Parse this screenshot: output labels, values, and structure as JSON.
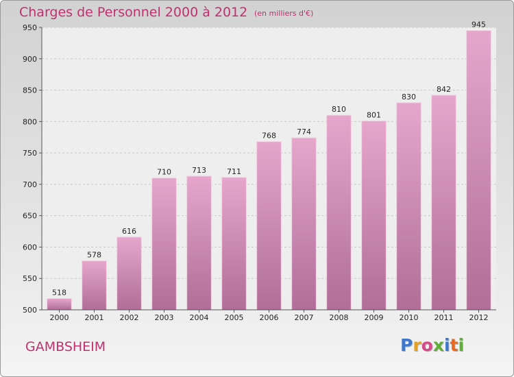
{
  "header": {
    "title": "Charges de Personnel 2000 à 2012",
    "subtitle": "(en milliers d'€)"
  },
  "footer": {
    "city": "GAMBSHEIM",
    "logo_text": "Proxiti"
  },
  "colors": {
    "accent": "#c0306e",
    "bar_top": "#e6a6cc",
    "bar_bottom": "#b06e98"
  },
  "chart_data": {
    "type": "bar",
    "title": "Charges de Personnel 2000 à 2012",
    "subtitle": "(en milliers d'€)",
    "categories": [
      "2000",
      "2001",
      "2002",
      "2003",
      "2004",
      "2005",
      "2006",
      "2007",
      "2008",
      "2009",
      "2010",
      "2011",
      "2012"
    ],
    "values": [
      518,
      578,
      616,
      710,
      713,
      711,
      768,
      774,
      810,
      801,
      830,
      842,
      945
    ],
    "ylim": [
      500,
      950
    ],
    "yticks": [
      500,
      550,
      600,
      650,
      700,
      750,
      800,
      850,
      900,
      950
    ],
    "grid": true,
    "legend": "none"
  }
}
